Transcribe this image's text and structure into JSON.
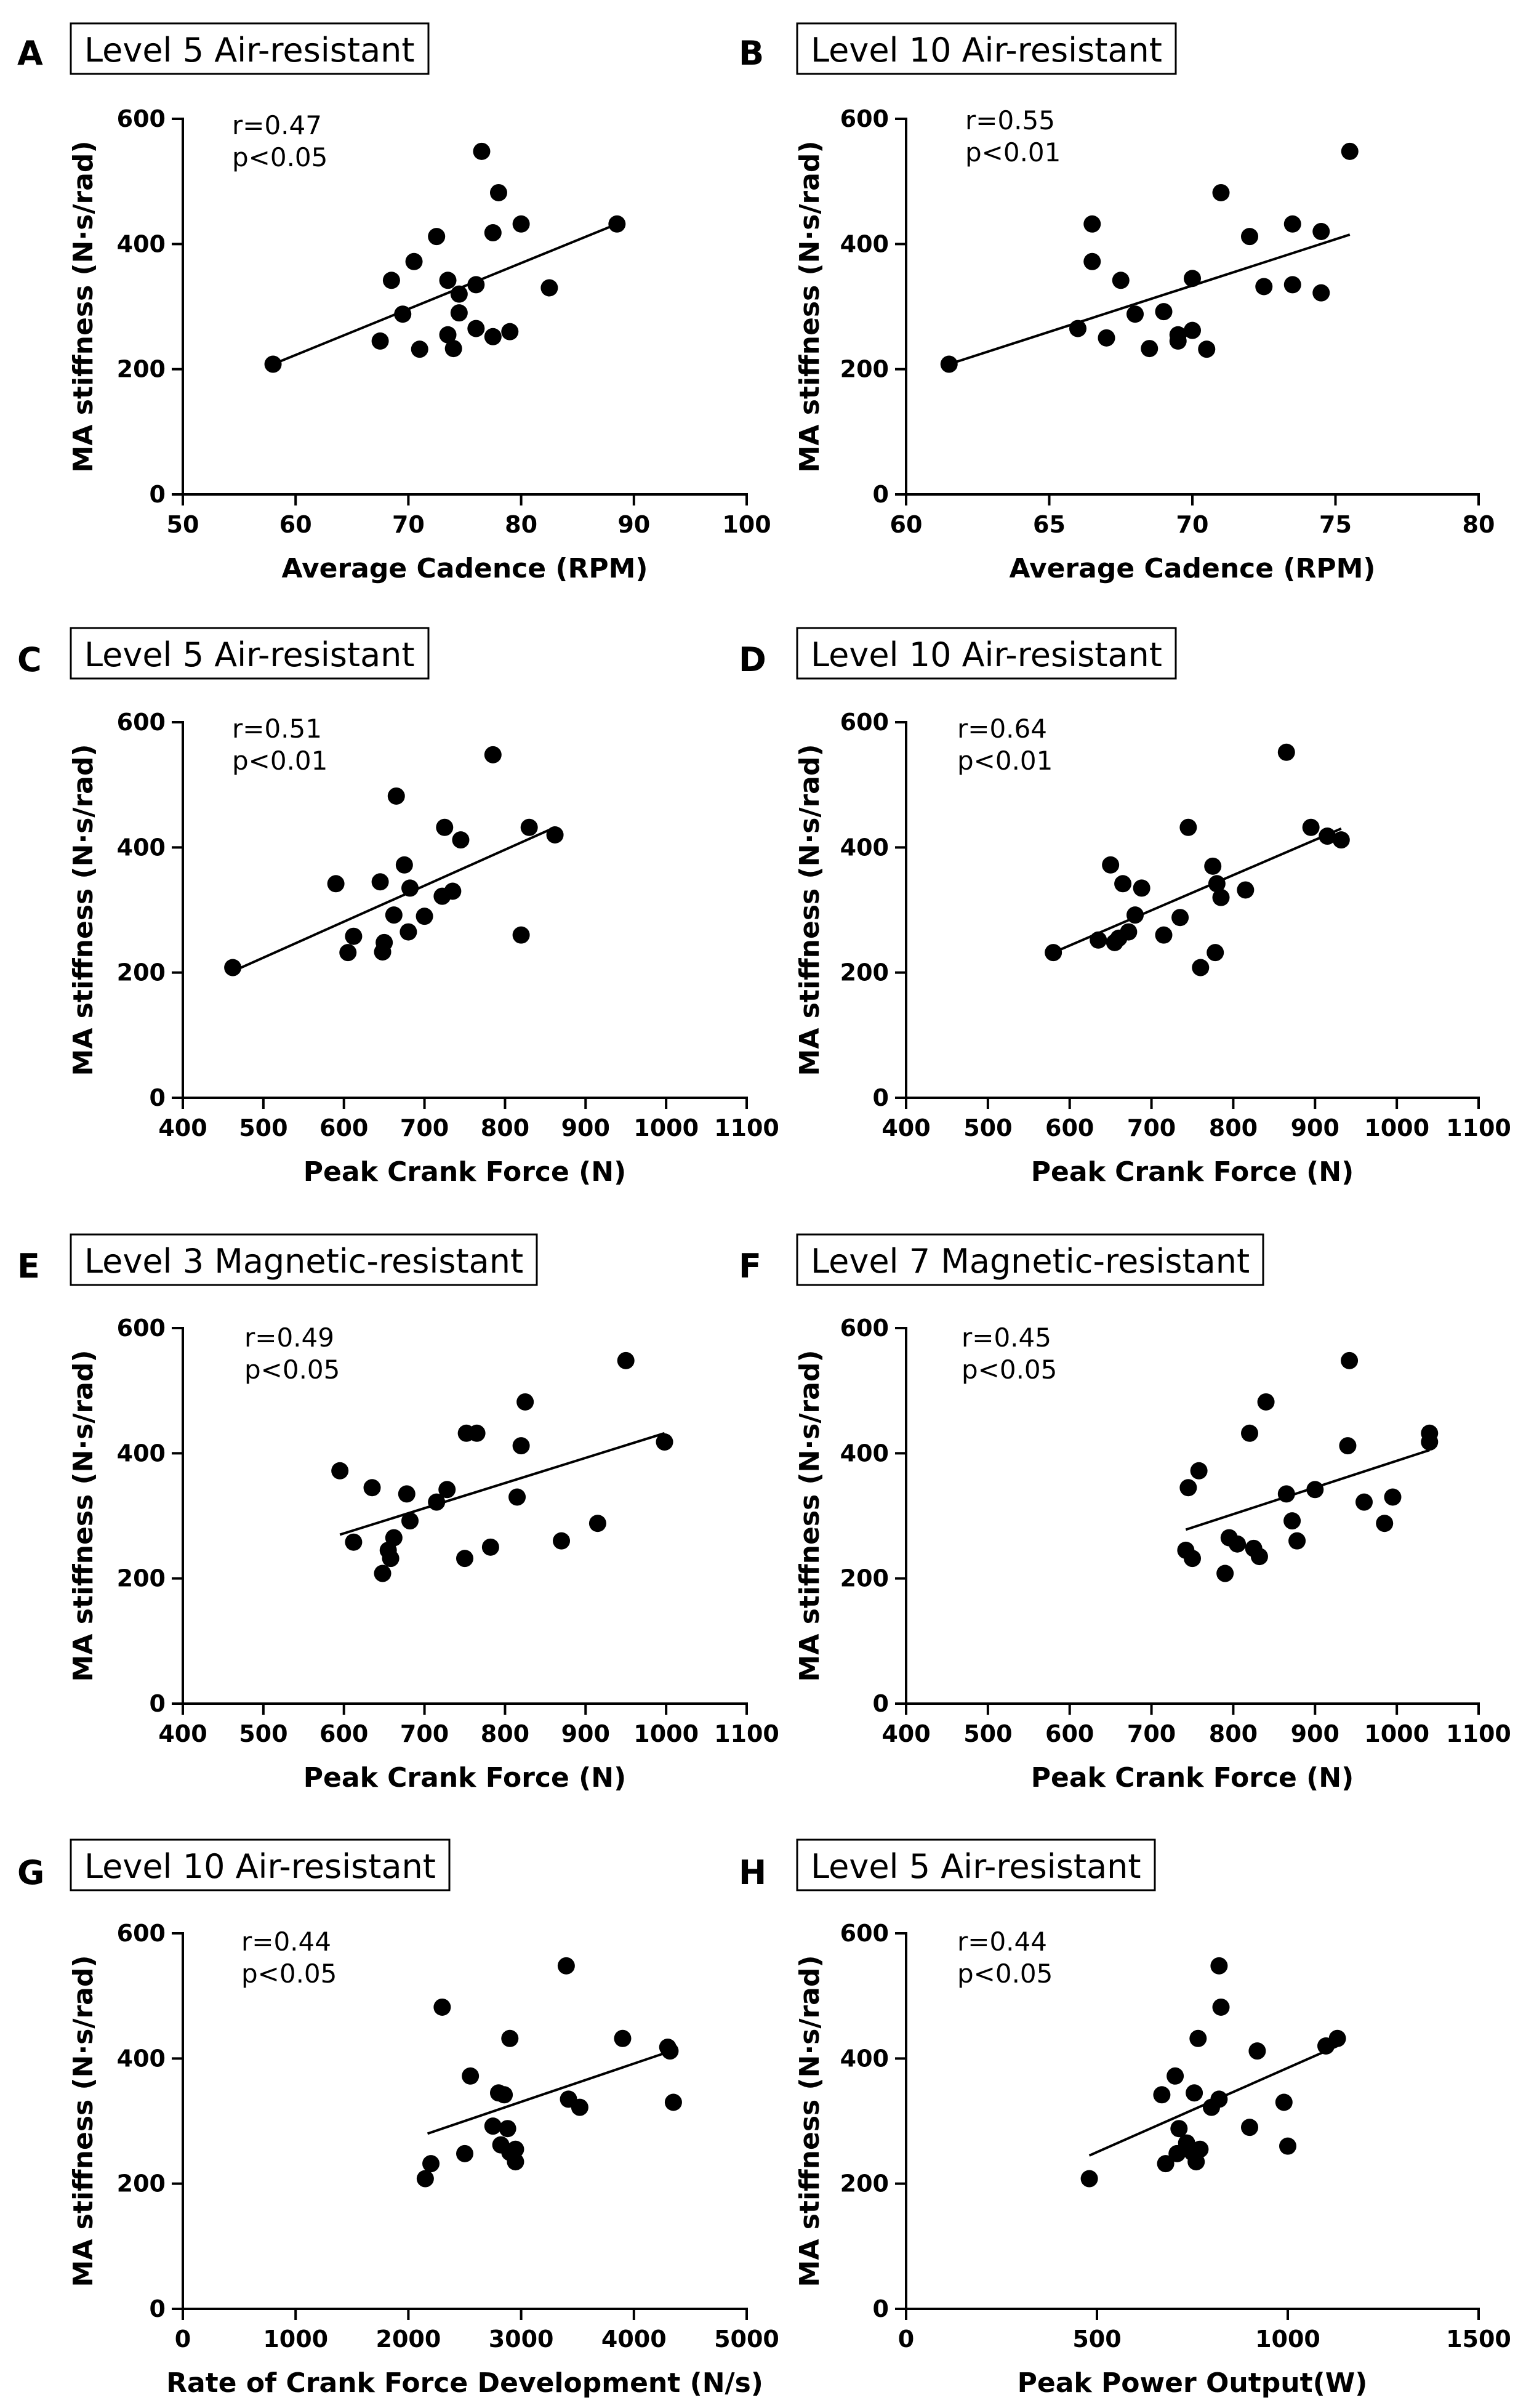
{
  "chart_data": [
    {
      "type": "scatter",
      "panel": "A",
      "title": "Level 5 Air-resistant",
      "stats": [
        "r=0.47",
        "p<0.05"
      ],
      "xlabel": "Average Cadence (RPM)",
      "ylabel": "MA stiffness (N·s/rad)",
      "xlim": [
        50,
        100
      ],
      "ylim": [
        0,
        600
      ],
      "xticks": [
        50,
        60,
        70,
        80,
        90,
        100
      ],
      "yticks": [
        0,
        200,
        400,
        600
      ],
      "fit": [
        [
          58,
          208
        ],
        [
          88.5,
          432
        ]
      ],
      "points": [
        [
          58,
          208
        ],
        [
          67.5,
          245
        ],
        [
          68.5,
          342
        ],
        [
          69.5,
          288
        ],
        [
          70.5,
          372
        ],
        [
          71,
          232
        ],
        [
          72.5,
          412
        ],
        [
          73.5,
          342
        ],
        [
          73.5,
          255
        ],
        [
          74,
          233
        ],
        [
          74.5,
          320
        ],
        [
          74.5,
          290
        ],
        [
          76,
          335
        ],
        [
          76,
          265
        ],
        [
          76.5,
          548
        ],
        [
          77.5,
          418
        ],
        [
          77.5,
          252
        ],
        [
          78,
          482
        ],
        [
          79,
          260
        ],
        [
          80,
          432
        ],
        [
          82.5,
          330
        ],
        [
          88.5,
          432
        ]
      ]
    },
    {
      "type": "scatter",
      "panel": "B",
      "title": "Level 10 Air-resistant",
      "stats": [
        "r=0.55",
        "p<0.01"
      ],
      "xlabel": "Average Cadence (RPM)",
      "ylabel": "MA stiffness (N·s/rad)",
      "xlim": [
        60,
        80
      ],
      "ylim": [
        0,
        600
      ],
      "xticks": [
        60,
        65,
        70,
        75,
        80
      ],
      "yticks": [
        0,
        200,
        400,
        600
      ],
      "fit": [
        [
          61.5,
          208
        ],
        [
          75.5,
          415
        ]
      ],
      "points": [
        [
          61.5,
          208
        ],
        [
          66,
          265
        ],
        [
          66.5,
          432
        ],
        [
          66.5,
          372
        ],
        [
          67,
          250
        ],
        [
          67.5,
          342
        ],
        [
          68,
          288
        ],
        [
          68.5,
          233
        ],
        [
          69,
          292
        ],
        [
          69.5,
          255
        ],
        [
          69.5,
          245
        ],
        [
          70,
          345
        ],
        [
          70,
          262
        ],
        [
          70.5,
          232
        ],
        [
          71,
          482
        ],
        [
          72,
          412
        ],
        [
          72.5,
          332
        ],
        [
          73.5,
          432
        ],
        [
          73.5,
          335
        ],
        [
          74.5,
          420
        ],
        [
          74.5,
          322
        ],
        [
          75.5,
          548
        ]
      ]
    },
    {
      "type": "scatter",
      "panel": "C",
      "title": "Level 5 Air-resistant",
      "stats": [
        "r=0.51",
        "p<0.01"
      ],
      "xlabel": "Peak Crank Force (N)",
      "ylabel": "MA stiffness (N·s/rad)",
      "xlim": [
        400,
        1100
      ],
      "ylim": [
        0,
        600
      ],
      "xticks": [
        400,
        500,
        600,
        700,
        800,
        900,
        1000,
        1100
      ],
      "yticks": [
        0,
        200,
        400,
        600
      ],
      "fit": [
        [
          462,
          202
        ],
        [
          862,
          432
        ]
      ],
      "points": [
        [
          462,
          208
        ],
        [
          590,
          342
        ],
        [
          605,
          232
        ],
        [
          612,
          258
        ],
        [
          645,
          345
        ],
        [
          648,
          233
        ],
        [
          650,
          248
        ],
        [
          662,
          292
        ],
        [
          665,
          482
        ],
        [
          675,
          372
        ],
        [
          680,
          265
        ],
        [
          682,
          335
        ],
        [
          700,
          290
        ],
        [
          722,
          322
        ],
        [
          725,
          432
        ],
        [
          735,
          330
        ],
        [
          745,
          412
        ],
        [
          785,
          548
        ],
        [
          820,
          260
        ],
        [
          830,
          432
        ],
        [
          862,
          420
        ]
      ]
    },
    {
      "type": "scatter",
      "panel": "D",
      "title": "Level 10 Air-resistant",
      "stats": [
        "r=0.64",
        "p<0.01"
      ],
      "xlabel": "Peak Crank Force (N)",
      "ylabel": "MA stiffness (N·s/rad)",
      "xlim": [
        400,
        1100
      ],
      "ylim": [
        0,
        600
      ],
      "xticks": [
        400,
        500,
        600,
        700,
        800,
        900,
        1000,
        1100
      ],
      "yticks": [
        0,
        200,
        400,
        600
      ],
      "fit": [
        [
          580,
          232
        ],
        [
          932,
          430
        ]
      ],
      "points": [
        [
          580,
          232
        ],
        [
          635,
          252
        ],
        [
          650,
          372
        ],
        [
          655,
          248
        ],
        [
          660,
          255
        ],
        [
          665,
          342
        ],
        [
          672,
          265
        ],
        [
          680,
          292
        ],
        [
          688,
          335
        ],
        [
          715,
          260
        ],
        [
          735,
          288
        ],
        [
          745,
          432
        ],
        [
          760,
          208
        ],
        [
          775,
          370
        ],
        [
          778,
          232
        ],
        [
          780,
          342
        ],
        [
          785,
          320
        ],
        [
          815,
          332
        ],
        [
          865,
          552
        ],
        [
          895,
          432
        ],
        [
          915,
          418
        ],
        [
          932,
          412
        ]
      ]
    },
    {
      "type": "scatter",
      "panel": "E",
      "title": "Level 3 Magnetic-resistant",
      "stats": [
        "r=0.49",
        "p<0.05"
      ],
      "xlabel": "Peak Crank Force (N)",
      "ylabel": "MA stiffness (N·s/rad)",
      "xlim": [
        400,
        1100
      ],
      "ylim": [
        0,
        600
      ],
      "xticks": [
        400,
        500,
        600,
        700,
        800,
        900,
        1000,
        1100
      ],
      "yticks": [
        0,
        200,
        400,
        600
      ],
      "fit": [
        [
          595,
          270
        ],
        [
          998,
          432
        ]
      ],
      "points": [
        [
          595,
          372
        ],
        [
          612,
          258
        ],
        [
          635,
          345
        ],
        [
          648,
          208
        ],
        [
          655,
          245
        ],
        [
          658,
          232
        ],
        [
          662,
          265
        ],
        [
          678,
          335
        ],
        [
          682,
          292
        ],
        [
          715,
          322
        ],
        [
          728,
          342
        ],
        [
          750,
          232
        ],
        [
          752,
          432
        ],
        [
          765,
          432
        ],
        [
          782,
          250
        ],
        [
          815,
          330
        ],
        [
          820,
          412
        ],
        [
          825,
          482
        ],
        [
          870,
          260
        ],
        [
          915,
          288
        ],
        [
          950,
          548
        ],
        [
          998,
          418
        ]
      ]
    },
    {
      "type": "scatter",
      "panel": "F",
      "title": "Level 7 Magnetic-resistant",
      "stats": [
        "r=0.45",
        "p<0.05"
      ],
      "xlabel": "Peak Crank Force (N)",
      "ylabel": "MA stiffness (N·s/rad)",
      "xlim": [
        400,
        1100
      ],
      "ylim": [
        0,
        600
      ],
      "xticks": [
        400,
        500,
        600,
        700,
        800,
        900,
        1000,
        1100
      ],
      "yticks": [
        0,
        200,
        400,
        600
      ],
      "fit": [
        [
          742,
          278
        ],
        [
          1040,
          405
        ]
      ],
      "points": [
        [
          742,
          245
        ],
        [
          745,
          345
        ],
        [
          750,
          232
        ],
        [
          758,
          372
        ],
        [
          790,
          208
        ],
        [
          795,
          265
        ],
        [
          805,
          255
        ],
        [
          820,
          432
        ],
        [
          825,
          248
        ],
        [
          832,
          235
        ],
        [
          840,
          482
        ],
        [
          865,
          335
        ],
        [
          872,
          292
        ],
        [
          878,
          260
        ],
        [
          900,
          342
        ],
        [
          940,
          412
        ],
        [
          942,
          548
        ],
        [
          960,
          322
        ],
        [
          985,
          288
        ],
        [
          995,
          330
        ],
        [
          1040,
          432
        ],
        [
          1040,
          418
        ]
      ]
    },
    {
      "type": "scatter",
      "panel": "G",
      "title": "Level 10 Air-resistant",
      "stats": [
        "r=0.44",
        "p<0.05"
      ],
      "xlabel": "Rate of Crank Force Development (N/s)",
      "ylabel": "MA stiffness (N·s/rad)",
      "xlim": [
        0,
        5000
      ],
      "ylim": [
        0,
        600
      ],
      "xticks": [
        0,
        1000,
        2000,
        3000,
        4000,
        5000
      ],
      "yticks": [
        0,
        200,
        400,
        600
      ],
      "fit": [
        [
          2170,
          280
        ],
        [
          4330,
          412
        ]
      ],
      "points": [
        [
          2150,
          208
        ],
        [
          2200,
          232
        ],
        [
          2300,
          482
        ],
        [
          2500,
          248
        ],
        [
          2550,
          372
        ],
        [
          2750,
          292
        ],
        [
          2800,
          345
        ],
        [
          2820,
          262
        ],
        [
          2850,
          342
        ],
        [
          2880,
          288
        ],
        [
          2900,
          432
        ],
        [
          2900,
          250
        ],
        [
          2950,
          235
        ],
        [
          2950,
          255
        ],
        [
          3400,
          548
        ],
        [
          3420,
          335
        ],
        [
          3520,
          322
        ],
        [
          3900,
          432
        ],
        [
          4300,
          418
        ],
        [
          4320,
          412
        ],
        [
          4350,
          330
        ]
      ]
    },
    {
      "type": "scatter",
      "panel": "H",
      "title": "Level 5 Air-resistant",
      "stats": [
        "r=0.44",
        "p<0.05"
      ],
      "xlabel": "Peak Power Output(W)",
      "ylabel": "MA stiffness (N·s/rad)",
      "xlim": [
        0,
        1500
      ],
      "ylim": [
        0,
        600
      ],
      "xticks": [
        0,
        500,
        1000,
        1500
      ],
      "yticks": [
        0,
        200,
        400,
        600
      ],
      "fit": [
        [
          480,
          245
        ],
        [
          1130,
          420
        ]
      ],
      "points": [
        [
          480,
          208
        ],
        [
          670,
          342
        ],
        [
          680,
          232
        ],
        [
          705,
          372
        ],
        [
          710,
          248
        ],
        [
          715,
          288
        ],
        [
          735,
          265
        ],
        [
          750,
          250
        ],
        [
          755,
          345
        ],
        [
          760,
          235
        ],
        [
          765,
          432
        ],
        [
          770,
          255
        ],
        [
          800,
          322
        ],
        [
          820,
          335
        ],
        [
          820,
          548
        ],
        [
          825,
          482
        ],
        [
          900,
          290
        ],
        [
          920,
          412
        ],
        [
          990,
          330
        ],
        [
          1000,
          260
        ],
        [
          1100,
          420
        ],
        [
          1130,
          432
        ]
      ]
    }
  ]
}
